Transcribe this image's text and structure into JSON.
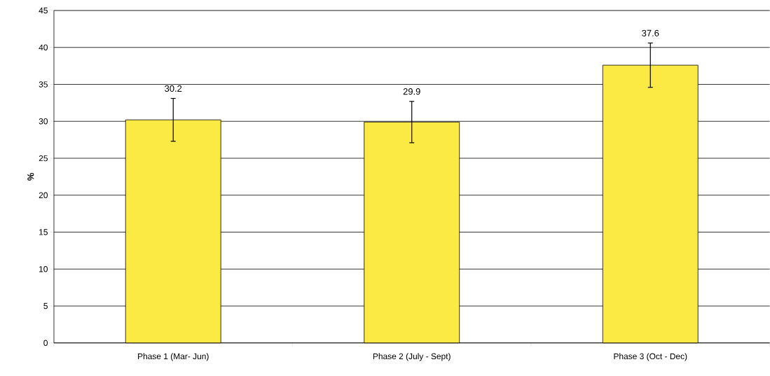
{
  "chart_data": {
    "type": "bar",
    "ylabel": "%",
    "categories": [
      "Phase 1 (Mar- Jun)",
      "Phase 2 (July - Sept)",
      "Phase 3 (Oct - Dec)"
    ],
    "values": [
      30.2,
      29.9,
      37.6
    ],
    "errors": [
      2.9,
      2.8,
      3.0
    ],
    "color": "#fcea44",
    "ylim": [
      0,
      45
    ],
    "yticks": [
      0,
      5,
      10,
      15,
      20,
      25,
      30,
      35,
      40,
      45
    ],
    "grid": "y",
    "value_labels": [
      "30.2",
      "29.9",
      "37.6"
    ]
  }
}
